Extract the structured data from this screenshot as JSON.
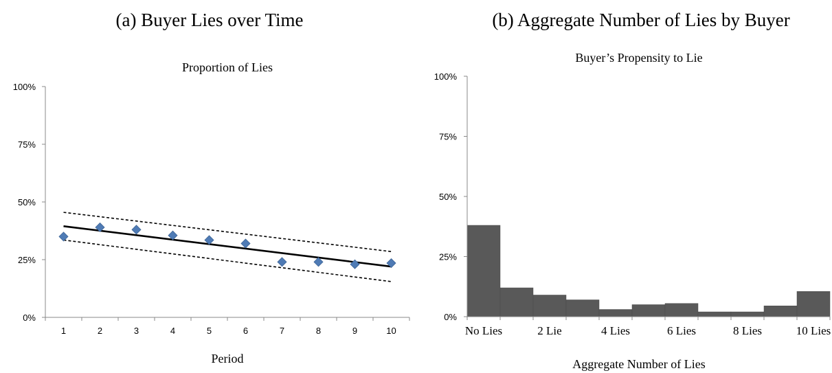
{
  "panels": {
    "a": {
      "title": "(a) Buyer Lies over Time"
    },
    "b": {
      "title": "(b)  Aggregate Number of Lies by Buyer"
    }
  },
  "chart_data": [
    {
      "type": "scatter",
      "title": "Proportion of Lies",
      "xlabel": "Period",
      "ylabel": "",
      "x": [
        1,
        2,
        3,
        4,
        5,
        6,
        7,
        8,
        9,
        10
      ],
      "y": [
        35,
        39,
        38,
        35.5,
        33.5,
        32,
        24,
        24,
        23,
        23.5
      ],
      "yticks": [
        "0%",
        "25%",
        "50%",
        "75%",
        "100%"
      ],
      "ylim": [
        0,
        100
      ],
      "xlim": [
        0.5,
        10.5
      ],
      "fit_line": {
        "start": 39.5,
        "end": 22
      },
      "confidence_band": {
        "upper": [
          45.5,
          28.5
        ],
        "lower": [
          33.5,
          15.5
        ]
      },
      "colors": {
        "points": "#4f7bb5",
        "line": "#000000"
      }
    },
    {
      "type": "bar",
      "title": "Buyer’s Propensity to Lie",
      "xlabel": "Aggregate Number of Lies",
      "ylabel": "",
      "values": [
        38,
        12,
        9,
        7,
        3,
        5,
        5.5,
        2,
        2,
        4.5,
        10.5
      ],
      "tick_labels": [
        "No Lies",
        "2 Lie",
        "4 Lies",
        "6 Lies",
        "8 Lies",
        "10 Lies"
      ],
      "yticks": [
        "0%",
        "25%",
        "50%",
        "75%",
        "100%"
      ],
      "ylim": [
        0,
        100
      ],
      "colors": {
        "bars": "#595959"
      }
    }
  ]
}
